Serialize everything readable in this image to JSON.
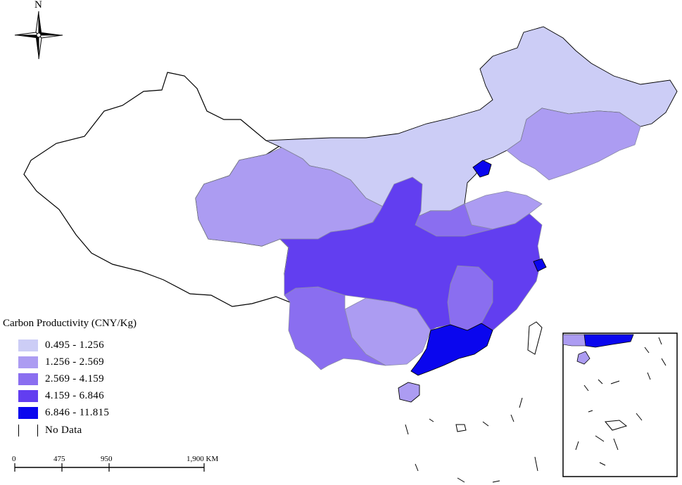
{
  "north_label": "N",
  "legend": {
    "title": "Carbon Productivity (CNY/Kg)",
    "classes": [
      {
        "label": "0.495 - 1.256",
        "color": "#cccdf6"
      },
      {
        "label": "1.256 - 2.569",
        "color": "#ac9cf2"
      },
      {
        "label": "2.569 - 4.159",
        "color": "#8a6ef0"
      },
      {
        "label": "4.159 - 6.846",
        "color": "#623ef0"
      },
      {
        "label": "6.846 - 11.815",
        "color": "#0a06ee"
      }
    ],
    "no_data_label": "No Data"
  },
  "scale_bar": {
    "labels": [
      "0",
      "475",
      "950",
      "1,900 KM"
    ]
  },
  "colors": {
    "border": "#000000",
    "province_line": "#8a8aa8"
  }
}
